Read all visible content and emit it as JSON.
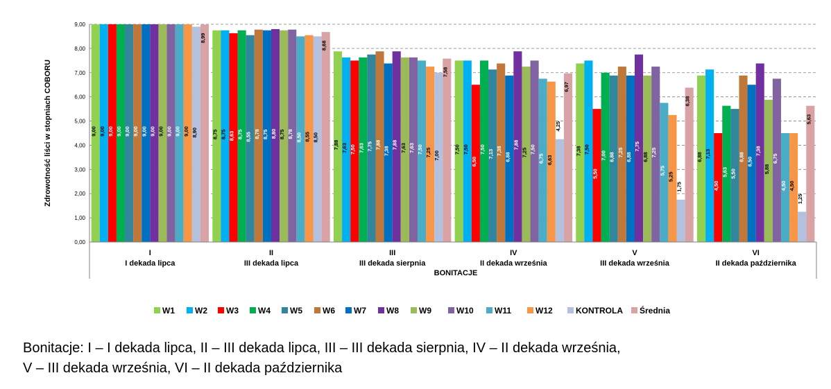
{
  "chart_data": {
    "type": "bar",
    "ylabel": "Zdrowotność liści w stopniach COBORU",
    "xlabel": "BONITACJE",
    "ylim": [
      0,
      9
    ],
    "yticks": [
      "0,00",
      "1,00",
      "2,00",
      "3,00",
      "4,00",
      "5,00",
      "6,00",
      "7,00",
      "8,00",
      "9,00"
    ],
    "grid": true,
    "legend_position": "bottom",
    "categories": [
      {
        "code": "I",
        "label": "I dekada lipca"
      },
      {
        "code": "II",
        "label": "III dekada lipca"
      },
      {
        "code": "III",
        "label": "III dekada sierpnia"
      },
      {
        "code": "IV",
        "label": "II dekada września"
      },
      {
        "code": "V",
        "label": "III dekada września"
      },
      {
        "code": "VI",
        "label": "II dekada października"
      }
    ],
    "series": [
      {
        "name": "W1",
        "color": "#92d050",
        "values": [
          9.0,
          8.75,
          7.88,
          7.5,
          7.38,
          6.88
        ]
      },
      {
        "name": "W2",
        "color": "#00b0f0",
        "values": [
          9.0,
          8.75,
          7.63,
          7.5,
          7.5,
          7.13
        ]
      },
      {
        "name": "W3",
        "color": "#ff0000",
        "values": [
          9.0,
          8.63,
          7.5,
          6.5,
          5.5,
          4.5
        ]
      },
      {
        "name": "W4",
        "color": "#00b050",
        "values": [
          9.0,
          8.75,
          7.63,
          7.5,
          7.0,
          5.63
        ]
      },
      {
        "name": "W5",
        "color": "#31859c",
        "values": [
          9.0,
          8.55,
          7.75,
          7.13,
          6.88,
          5.5
        ]
      },
      {
        "name": "W6",
        "color": "#c0773a",
        "values": [
          9.0,
          8.78,
          7.88,
          7.38,
          7.25,
          6.88
        ]
      },
      {
        "name": "W7",
        "color": "#0070c0",
        "values": [
          9.0,
          8.75,
          7.38,
          6.88,
          6.88,
          6.5
        ]
      },
      {
        "name": "W8",
        "color": "#7030a0",
        "values": [
          9.0,
          8.8,
          7.88,
          7.88,
          7.75,
          7.38
        ]
      },
      {
        "name": "W9",
        "color": "#9bbb59",
        "values": [
          9.0,
          8.75,
          7.63,
          7.25,
          6.88,
          5.88
        ]
      },
      {
        "name": "W10",
        "color": "#8064a2",
        "values": [
          9.0,
          8.78,
          7.63,
          7.5,
          7.25,
          6.75
        ]
      },
      {
        "name": "W11",
        "color": "#4bacc6",
        "values": [
          9.0,
          8.5,
          7.5,
          6.75,
          5.75,
          4.5
        ]
      },
      {
        "name": "W12",
        "color": "#f79646",
        "values": [
          9.0,
          8.55,
          7.25,
          6.63,
          5.25,
          4.5
        ]
      },
      {
        "name": "KONTROLA",
        "color": "#b4c1de",
        "values": [
          8.9,
          8.5,
          7.0,
          4.25,
          1.75,
          1.25
        ]
      },
      {
        "name": "Średnia",
        "color": "#d9a3a6",
        "values": [
          8.99,
          8.68,
          7.58,
          6.97,
          6.38,
          5.63
        ]
      }
    ]
  },
  "caption": {
    "line1": "Bonitacje: I – I dekada lipca, II – III dekada lipca, III – III dekada sierpnia, IV – II dekada września,",
    "line2": "V – III dekada września, VI – II dekada października"
  }
}
